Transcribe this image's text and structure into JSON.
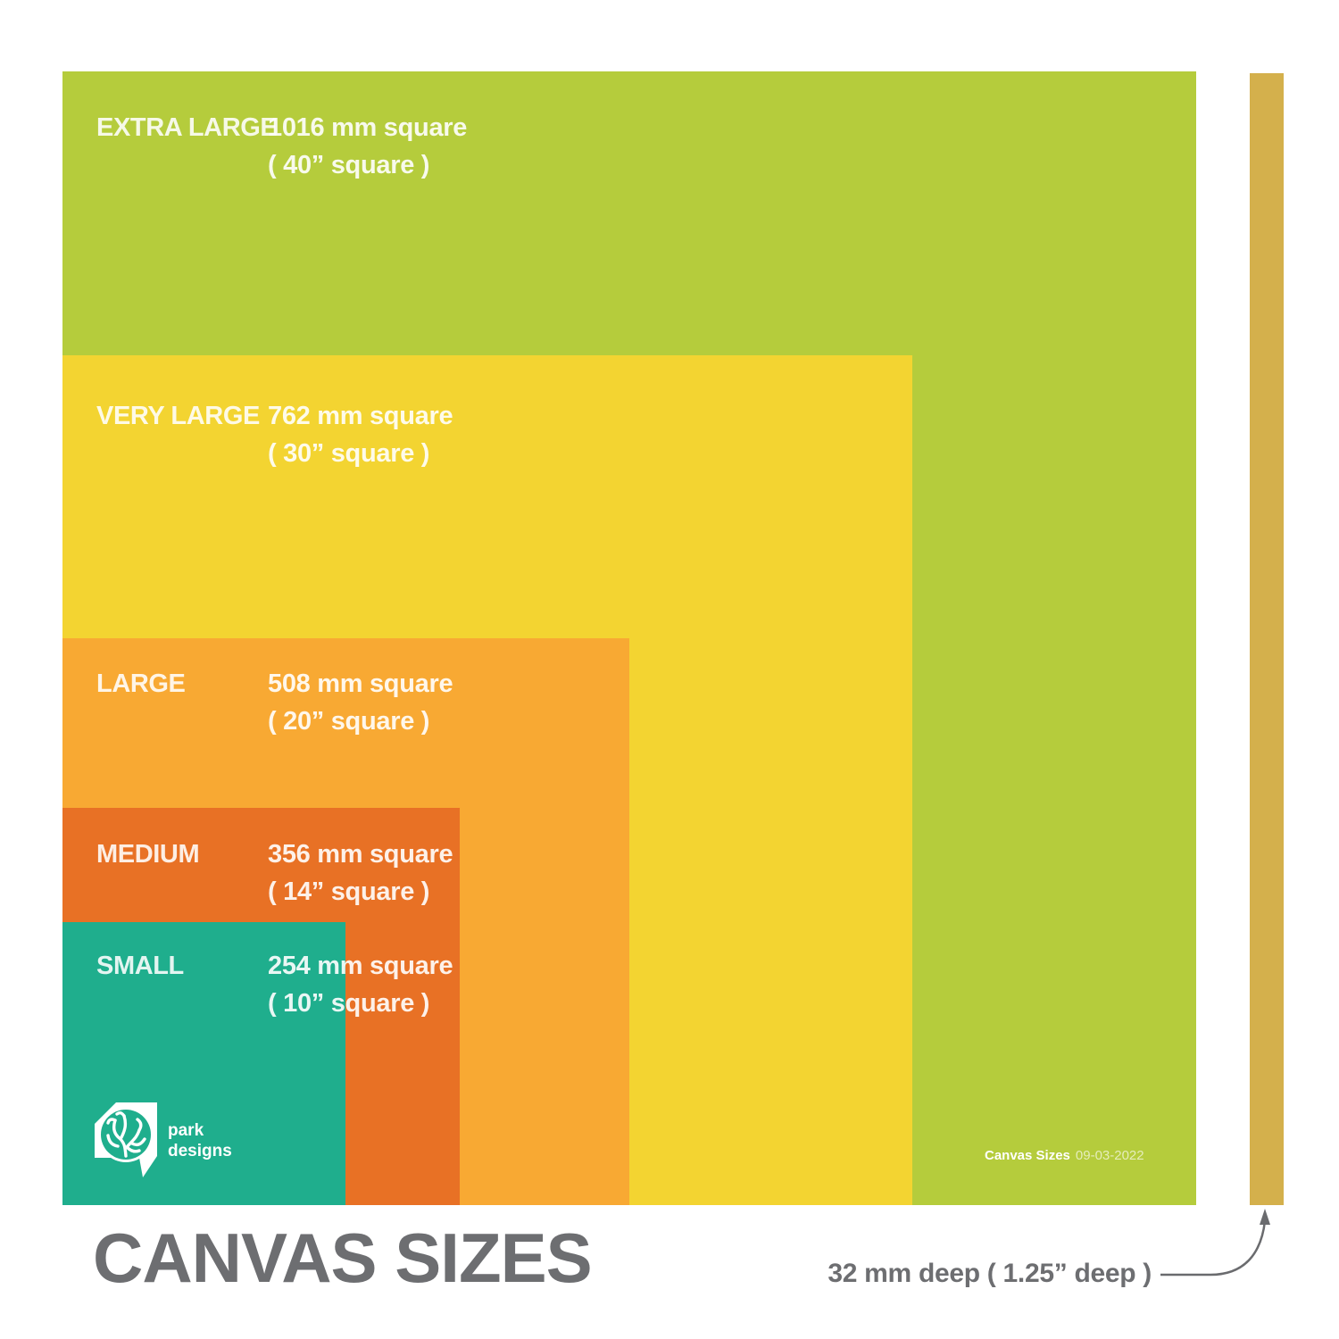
{
  "page": {
    "title": "CANVAS SIZES"
  },
  "sizes": [
    {
      "id": "extra-large",
      "name": "EXTRA LARGE",
      "mm": "1016 mm square",
      "inches": "( 40” square )",
      "mm_value": 1016,
      "inches_value": 40,
      "color": "#B5CC3C"
    },
    {
      "id": "very-large",
      "name": "VERY LARGE",
      "mm": "762 mm square",
      "inches": "( 30” square )",
      "mm_value": 762,
      "inches_value": 30,
      "color": "#F3D431"
    },
    {
      "id": "large",
      "name": "LARGE",
      "mm": "508 mm square",
      "inches": "( 20” square )",
      "mm_value": 508,
      "inches_value": 20,
      "color": "#F8A933"
    },
    {
      "id": "medium",
      "name": "MEDIUM",
      "mm": "356 mm square",
      "inches": "( 14” square )",
      "mm_value": 356,
      "inches_value": 14,
      "color": "#E87125"
    },
    {
      "id": "small",
      "name": "SMALL",
      "mm": "254 mm square",
      "inches": "( 10” square )",
      "mm_value": 254,
      "inches_value": 10,
      "color": "#1FAE8D"
    }
  ],
  "depth_bar": {
    "color": "#D4B04C",
    "label": "32 mm deep ( 1.25” deep )"
  },
  "watermark": {
    "doc_label": "Canvas Sizes",
    "doc_date": "09-03-2022"
  },
  "logo": {
    "line1": "park",
    "line2": "designs"
  }
}
